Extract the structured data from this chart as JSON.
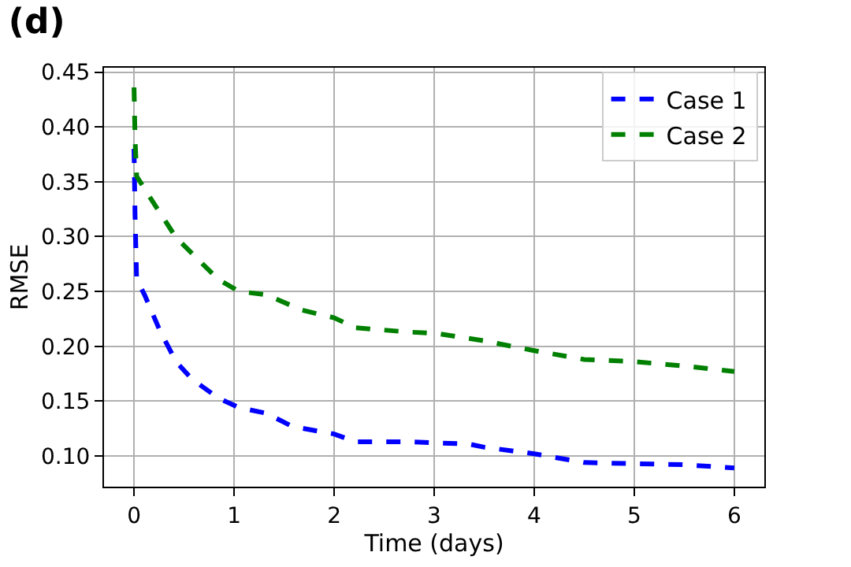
{
  "chart_data": {
    "type": "line",
    "title": "(d)",
    "xlabel": "Time (days)",
    "ylabel": "RMSE",
    "series": [
      {
        "name": "Case 1",
        "color": "#0000ff",
        "x": [
          0,
          0.01,
          0.026,
          0.105,
          0.26,
          0.42,
          0.58,
          0.84,
          1.05,
          1.32,
          1.58,
          2.0,
          2.21,
          2.74,
          3.0,
          3.34,
          3.5,
          4.0,
          4.5,
          5.0,
          5.5,
          6.0
        ],
        "values": [
          0.38,
          0.32,
          0.261,
          0.247,
          0.214,
          0.186,
          0.17,
          0.153,
          0.144,
          0.139,
          0.127,
          0.12,
          0.113,
          0.113,
          0.112,
          0.111,
          0.108,
          0.102,
          0.094,
          0.093,
          0.092,
          0.089
        ]
      },
      {
        "name": "Case 2",
        "color": "#008000",
        "x": [
          0,
          0.01,
          0.026,
          0.158,
          0.421,
          0.842,
          1.05,
          1.32,
          1.68,
          2.0,
          2.21,
          2.74,
          3.0,
          3.5,
          4.0,
          4.5,
          5.0,
          5.5,
          6.0
        ],
        "values": [
          0.436,
          0.39,
          0.355,
          0.336,
          0.299,
          0.261,
          0.25,
          0.247,
          0.233,
          0.226,
          0.217,
          0.213,
          0.212,
          0.205,
          0.196,
          0.188,
          0.186,
          0.182,
          0.177
        ]
      }
    ],
    "xlim": [
      -0.3,
      6.3
    ],
    "xticks": [
      0,
      1,
      2,
      3,
      4,
      5,
      6
    ],
    "ylim": [
      0.072,
      0.454
    ],
    "yticks": [
      {
        "value": 0.1,
        "label": "0.10"
      },
      {
        "value": 0.15,
        "label": "0.15"
      },
      {
        "value": 0.2,
        "label": "0.20"
      },
      {
        "value": 0.25,
        "label": "0.25"
      },
      {
        "value": 0.3,
        "label": "0.30"
      },
      {
        "value": 0.35,
        "label": "0.35"
      },
      {
        "value": 0.4,
        "label": "0.40"
      },
      {
        "value": 0.45,
        "label": "0.45"
      }
    ],
    "grid": true,
    "legend": "top right",
    "line_style": "dashed",
    "marker": "none"
  }
}
